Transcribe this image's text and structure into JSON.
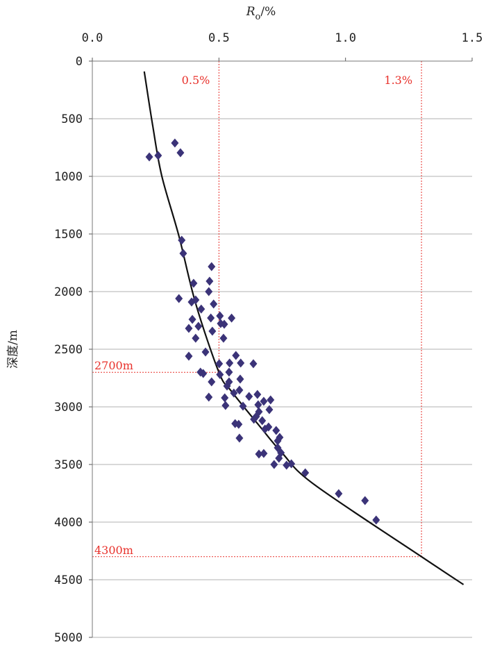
{
  "chart_data": {
    "type": "scatter",
    "xlabel_main": "R",
    "xlabel_sub": "o",
    "xlabel_unit": "/%",
    "ylabel": "深度/m",
    "xlim": [
      0,
      1.5
    ],
    "ylim": [
      0,
      5000
    ],
    "y_inverted": true,
    "x_axis_position": "top",
    "grid": "horizontal",
    "x_ticks": [
      "0.0",
      "0.5",
      "1.0",
      "1.5"
    ],
    "x_tick_values": [
      0,
      0.5,
      1.0,
      1.5
    ],
    "y_ticks": [
      "0",
      "500",
      "1000",
      "1500",
      "2000",
      "2500",
      "3000",
      "3500",
      "4000",
      "4500",
      "5000"
    ],
    "y_tick_values": [
      0,
      500,
      1000,
      1500,
      2000,
      2500,
      3000,
      3500,
      4000,
      4500,
      5000
    ],
    "colors": {
      "points": "#3b3378",
      "curve": "#111111",
      "reference": "#e8302a",
      "grid": "#b0b0b0"
    },
    "points": [
      [
        0.225,
        831
      ],
      [
        0.26,
        819
      ],
      [
        0.326,
        711
      ],
      [
        0.348,
        795
      ],
      [
        0.353,
        1554
      ],
      [
        0.359,
        1669
      ],
      [
        0.392,
        2090
      ],
      [
        0.342,
        2060
      ],
      [
        0.471,
        1783
      ],
      [
        0.463,
        1910
      ],
      [
        0.46,
        2000
      ],
      [
        0.395,
        2241
      ],
      [
        0.4,
        1928
      ],
      [
        0.408,
        2072
      ],
      [
        0.43,
        2151
      ],
      [
        0.419,
        2301
      ],
      [
        0.408,
        2404
      ],
      [
        0.381,
        2319
      ],
      [
        0.447,
        2524
      ],
      [
        0.438,
        2711
      ],
      [
        0.381,
        2560
      ],
      [
        0.474,
        2343
      ],
      [
        0.479,
        2108
      ],
      [
        0.468,
        2229
      ],
      [
        0.504,
        2211
      ],
      [
        0.507,
        2277
      ],
      [
        0.521,
        2283
      ],
      [
        0.518,
        2404
      ],
      [
        0.55,
        2230
      ],
      [
        0.501,
        2626
      ],
      [
        0.542,
        2620
      ],
      [
        0.586,
        2620
      ],
      [
        0.636,
        2626
      ],
      [
        0.567,
        2554
      ],
      [
        0.54,
        2699
      ],
      [
        0.54,
        2783
      ],
      [
        0.504,
        2720
      ],
      [
        0.471,
        2783
      ],
      [
        0.46,
        2916
      ],
      [
        0.427,
        2699
      ],
      [
        0.523,
        2922
      ],
      [
        0.526,
        2988
      ],
      [
        0.584,
        2759
      ],
      [
        0.581,
        2855
      ],
      [
        0.532,
        2819
      ],
      [
        0.559,
        2880
      ],
      [
        0.619,
        2910
      ],
      [
        0.595,
        2994
      ],
      [
        0.652,
        2892
      ],
      [
        0.655,
        2982
      ],
      [
        0.677,
        2952
      ],
      [
        0.699,
        3024
      ],
      [
        0.671,
        3120
      ],
      [
        0.658,
        3042
      ],
      [
        0.647,
        3084
      ],
      [
        0.704,
        2940
      ],
      [
        0.564,
        3145
      ],
      [
        0.578,
        3151
      ],
      [
        0.581,
        3271
      ],
      [
        0.638,
        3108
      ],
      [
        0.682,
        3193
      ],
      [
        0.696,
        3175
      ],
      [
        0.726,
        3205
      ],
      [
        0.732,
        3355
      ],
      [
        0.74,
        3265
      ],
      [
        0.745,
        3398
      ],
      [
        0.732,
        3295
      ],
      [
        0.737,
        3446
      ],
      [
        0.786,
        3494
      ],
      [
        0.767,
        3506
      ],
      [
        0.718,
        3500
      ],
      [
        0.658,
        3410
      ],
      [
        0.677,
        3404
      ],
      [
        0.841,
        3572
      ],
      [
        0.973,
        3753
      ],
      [
        1.077,
        3813
      ],
      [
        1.121,
        3982
      ]
    ],
    "curve": [
      [
        0.205,
        90
      ],
      [
        0.238,
        554
      ],
      [
        0.274,
        994
      ],
      [
        0.342,
        1518
      ],
      [
        0.408,
        2102
      ],
      [
        0.5,
        2700
      ],
      [
        0.548,
        2861
      ],
      [
        0.668,
        3187
      ],
      [
        0.751,
        3404
      ],
      [
        0.877,
        3675
      ],
      [
        1.3,
        4300
      ],
      [
        1.466,
        4542
      ]
    ],
    "reference_lines": [
      {
        "ro": 0.5,
        "depth": 2700,
        "ro_label": "0.5%",
        "depth_label": "2700m"
      },
      {
        "ro": 1.3,
        "depth": 4300,
        "ro_label": "1.3%",
        "depth_label": "4300m"
      }
    ]
  }
}
